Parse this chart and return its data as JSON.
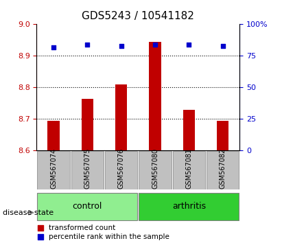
{
  "title": "GDS5243 / 10541182",
  "samples": [
    "GSM567074",
    "GSM567075",
    "GSM567076",
    "GSM567080",
    "GSM567081",
    "GSM567082"
  ],
  "bar_values": [
    8.695,
    8.765,
    8.81,
    8.945,
    8.73,
    8.695
  ],
  "bar_baseline": 8.6,
  "percentile_values": [
    82,
    84,
    83,
    84,
    84,
    83
  ],
  "ylim_left": [
    8.6,
    9.0
  ],
  "ylim_right": [
    0,
    100
  ],
  "yticks_left": [
    8.6,
    8.7,
    8.8,
    8.9,
    9.0
  ],
  "yticks_right": [
    0,
    25,
    50,
    75,
    100
  ],
  "ytick_labels_right": [
    "0",
    "25",
    "50",
    "75",
    "100%"
  ],
  "grid_values": [
    8.7,
    8.8,
    8.9
  ],
  "bar_color": "#c00000",
  "dot_color": "#0000cc",
  "control_color": "#90ee90",
  "arthritis_color": "#32cd32",
  "label_bg_color": "#c0c0c0",
  "control_samples": [
    0,
    1,
    2
  ],
  "arthritis_samples": [
    3,
    4,
    5
  ],
  "control_label": "control",
  "arthritis_label": "arthritis",
  "legend_bar_label": "transformed count",
  "legend_dot_label": "percentile rank within the sample",
  "disease_state_label": "disease state",
  "title_fontsize": 11,
  "axis_label_fontsize": 8,
  "tick_fontsize": 8,
  "sample_label_fontsize": 7
}
